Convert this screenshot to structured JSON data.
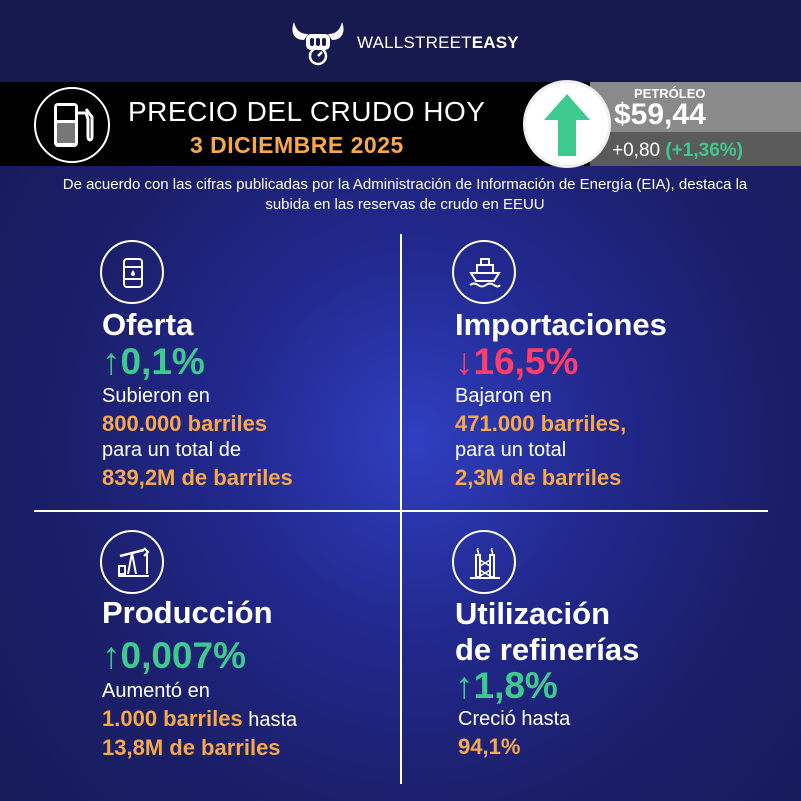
{
  "header": {
    "brand_light": "WALLSTREET",
    "brand_bold": "EASY",
    "logo_icon": "bull-fist-logo-icon"
  },
  "title_bar": {
    "title": "PRECIO DEL CRUDO HOY",
    "date": "3 DICIEMBRE 2025",
    "pump_icon": "fuel-pump-icon"
  },
  "price": {
    "label": "PETRÓLEO",
    "value": "$59,44",
    "change": "+0,80",
    "change_pct": "(+1,36%)",
    "arrow_icon": "up-arrow-icon",
    "arrow_color": "#3ec98e"
  },
  "intro": "De acuerdo con las cifras publicadas por la Administración de Información de Energía (EIA), destaca la subida en las reservas de crudo en EEUU",
  "colors": {
    "up": "#3ec98e",
    "down": "#ff3d6a",
    "highlight": "#f7a84a",
    "background": "#1b1f6a"
  },
  "sections": {
    "oferta": {
      "icon": "oil-barrel-icon",
      "heading": "Oferta",
      "arrow": "↑",
      "pct": "0,1%",
      "line1": "Subieron en",
      "line2": "800.000 barriles",
      "line3": "para un total de",
      "line4": "839,2M de barriles"
    },
    "importaciones": {
      "icon": "ship-icon",
      "heading": "Importaciones",
      "arrow": "↓",
      "pct": "16,5%",
      "line1": "Bajaron en",
      "line2": "471.000 barriles,",
      "line3": "para un total",
      "line4": "2,3M de barriles"
    },
    "produccion": {
      "icon": "pump-jack-icon",
      "heading": "Producción",
      "arrow": "↑",
      "pct": "0,007%",
      "line1": "Aumentó en",
      "line2": "1.000 barriles",
      "line2_suffix": " hasta",
      "line3": "13,8M de barriles"
    },
    "refinerias": {
      "icon": "refinery-icon",
      "heading_line1": "Utilización",
      "heading_line2": "de refinerías",
      "arrow": "↑",
      "pct": "1,8%",
      "line1": "Creció hasta",
      "line2": "94,1%"
    }
  }
}
